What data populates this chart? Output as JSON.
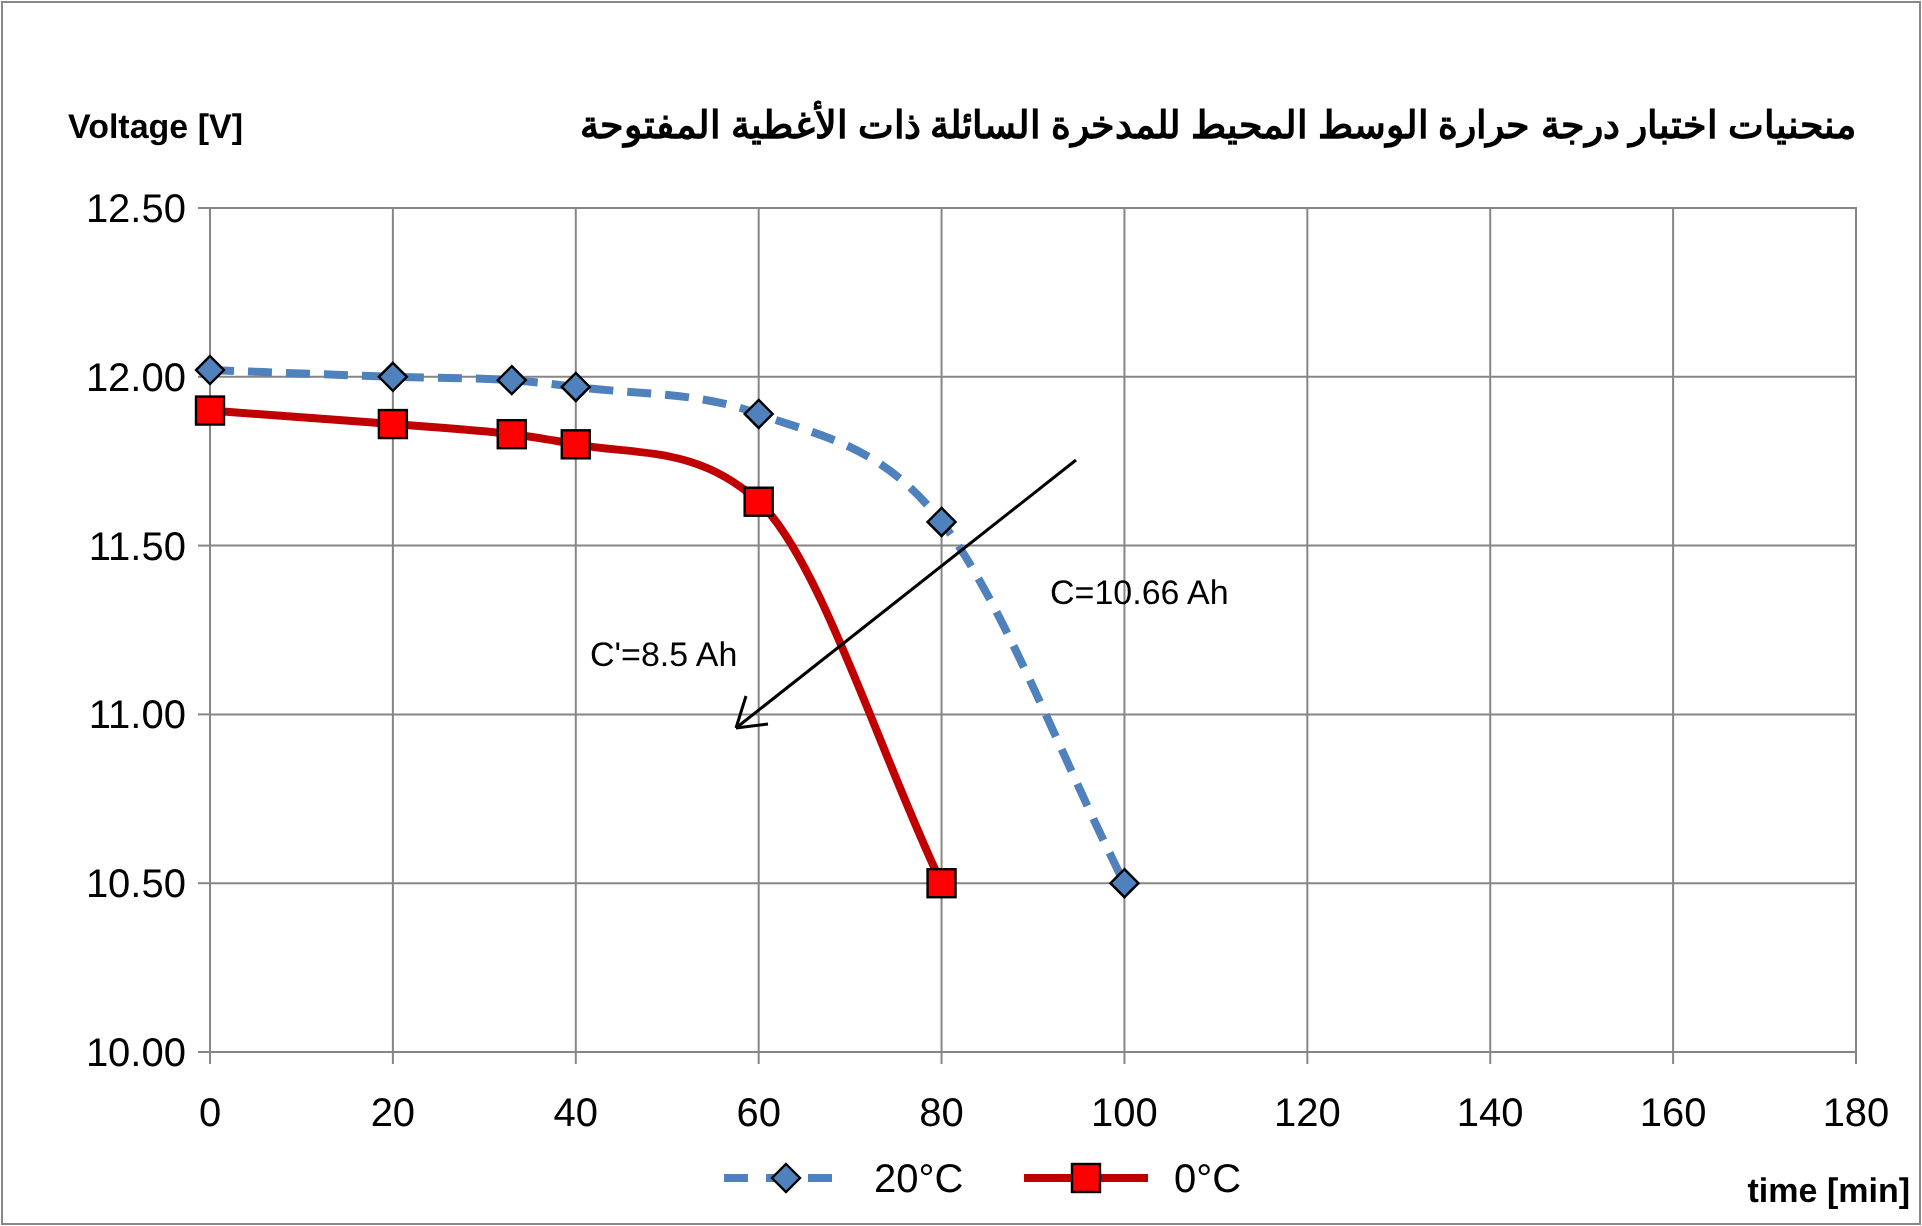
{
  "chart_data": {
    "type": "line",
    "title": "منحنيات اختبار درجة حرارة الوسط المحيط للمدخرة السائلة ذات الأغطية المفتوحة",
    "ylabel": "Voltage [V]",
    "xlabel": "time [min]",
    "series": [
      {
        "name": "20°C",
        "color": "#4f81bd",
        "marker": "diamond",
        "line_style": "dashed",
        "x": [
          0,
          20,
          33,
          40,
          60,
          80,
          100
        ],
        "values": [
          12.02,
          12.0,
          11.99,
          11.97,
          11.89,
          11.57,
          10.5
        ]
      },
      {
        "name": "0°C",
        "color": "#c00000",
        "marker": "square",
        "line_style": "solid",
        "x": [
          0,
          20,
          33,
          40,
          60,
          80
        ],
        "values": [
          11.9,
          11.86,
          11.83,
          11.8,
          11.63,
          10.5
        ]
      }
    ],
    "xlim": [
      0,
      180
    ],
    "xticks": [
      0,
      20,
      40,
      60,
      80,
      100,
      120,
      140,
      160,
      180
    ],
    "ylim": [
      10,
      12.5
    ],
    "yticks": [
      {
        "value": 10,
        "label": "10.00"
      },
      {
        "value": 10.5,
        "label": "10.50"
      },
      {
        "value": 11,
        "label": "11.00"
      },
      {
        "value": 11.5,
        "label": "11.50"
      },
      {
        "value": 12,
        "label": "12.00"
      },
      {
        "value": 12.5,
        "label": "12.50"
      }
    ],
    "grid": true,
    "legend": "bottom",
    "annotations": [
      "C=10.66 Ah",
      "C'=8.5 Ah"
    ]
  }
}
